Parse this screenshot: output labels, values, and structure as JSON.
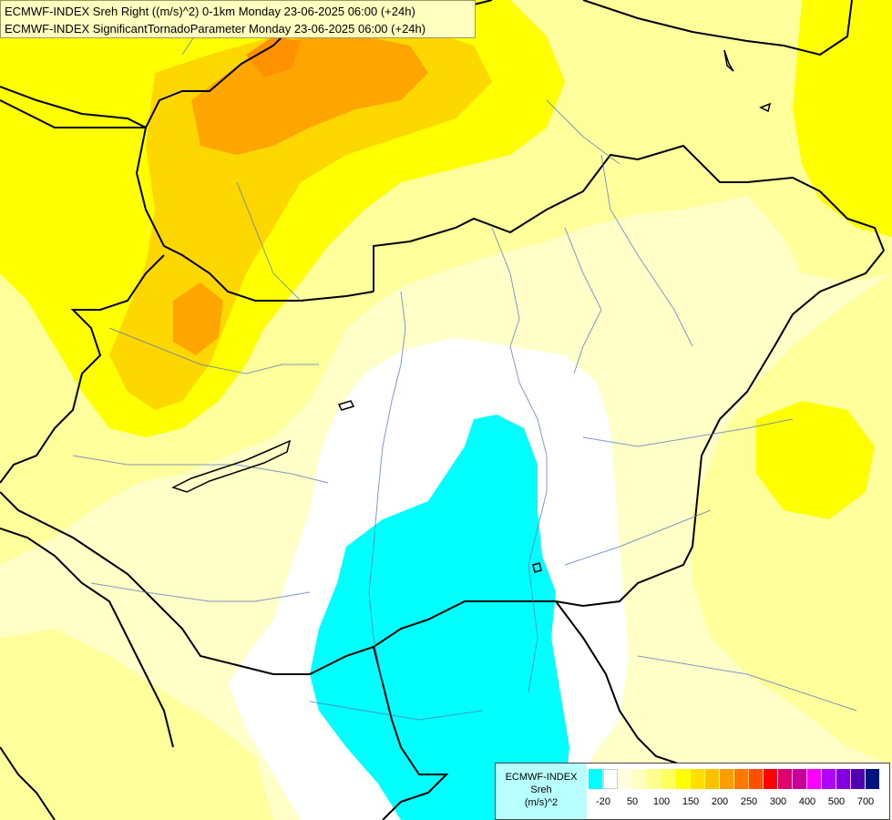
{
  "header": {
    "line1": "ECMWF-INDEX Sreh Right ((m/s)^2) 0-1km Monday 23-06-2025 06:00 (+24h)",
    "line2": "ECMWF-INDEX SignificantTornadoParameter Monday 23-06-2025 06:00 (+24h)"
  },
  "legend": {
    "line1": "ECMWF-INDEX",
    "line2": "Sreh",
    "line3": "(m/s)^2",
    "colors": [
      "#00ffff",
      "#ffffff",
      "#ffffe0",
      "#ffffc0",
      "#ffff90",
      "#ffff60",
      "#ffff00",
      "#ffe000",
      "#ffc000",
      "#ff9c00",
      "#ff7800",
      "#ff5000",
      "#ff0000",
      "#e0006c",
      "#c80096",
      "#ff00ff",
      "#b000ff",
      "#8000e0",
      "#5000b0",
      "#001480"
    ],
    "ticks": [
      "-20",
      "50",
      "100",
      "150",
      "200",
      "250",
      "300",
      "400",
      "500",
      "700"
    ]
  },
  "colors": {
    "cyan": "#00ffff",
    "white": "#ffffff",
    "pale": "#ffffc8",
    "light_yellow": "#ffff9c",
    "yellow": "#ffff00",
    "gold": "#ffd700",
    "orange": "#ffa500"
  }
}
